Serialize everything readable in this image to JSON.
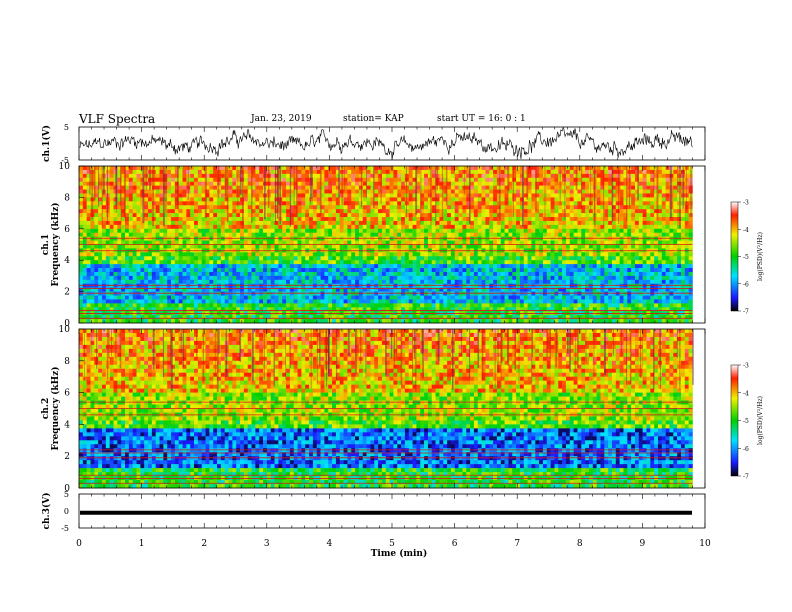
{
  "header": {
    "title": "VLF Spectra",
    "date": "Jan. 23, 2019",
    "station": "station= KAP",
    "start": "start  UT =   16: 0  : 1"
  },
  "chart_data": [
    {
      "type": "line",
      "name": "waveform-ch1",
      "ylabel": "ch.1(V)",
      "ylim": [
        -5,
        5
      ],
      "yticks": [
        "5",
        "-5"
      ],
      "xlim": [
        0,
        10
      ]
    },
    {
      "type": "heatmap",
      "name": "spectrogram-ch1",
      "ylabel_line1": "ch.1",
      "ylabel_line2": "Frequency (kHz)",
      "ylim": [
        0,
        10
      ],
      "yticks": [
        "0",
        "2",
        "4",
        "6",
        "8",
        "10"
      ],
      "xlim": [
        0,
        9.8
      ],
      "colorbar": {
        "label": "log(PSD)(V²/Hz)",
        "range": [
          -7,
          -3
        ],
        "ticks": [
          "-3",
          "-4",
          "-5",
          "-6",
          "-7"
        ]
      }
    },
    {
      "type": "heatmap",
      "name": "spectrogram-ch2",
      "ylabel_line1": "ch.2",
      "ylabel_line2": "Frequency (kHz)",
      "ylim": [
        0,
        10
      ],
      "yticks": [
        "0",
        "2",
        "4",
        "6",
        "8",
        "10"
      ],
      "xlim": [
        0,
        9.8
      ],
      "colorbar": {
        "label": "log(PSD)(V²/Hz)",
        "range": [
          -7,
          -3
        ],
        "ticks": [
          "-3",
          "-4",
          "-5",
          "-6",
          "-7"
        ]
      }
    },
    {
      "type": "line",
      "name": "waveform-ch3",
      "ylabel": "ch.3(V)",
      "ylim": [
        -5,
        5
      ],
      "yticks": [
        "5",
        "0",
        "-5"
      ],
      "xlim": [
        0,
        10
      ],
      "value": -0.5
    }
  ],
  "xaxis": {
    "label": "Time (min)",
    "ticks": [
      "0",
      "1",
      "2",
      "3",
      "4",
      "5",
      "6",
      "7",
      "8",
      "9",
      "10"
    ],
    "range": [
      0,
      10
    ]
  }
}
